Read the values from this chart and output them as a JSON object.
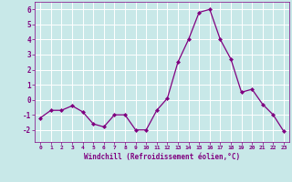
{
  "x": [
    0,
    1,
    2,
    3,
    4,
    5,
    6,
    7,
    8,
    9,
    10,
    11,
    12,
    13,
    14,
    15,
    16,
    17,
    18,
    19,
    20,
    21,
    22,
    23
  ],
  "y": [
    -1.2,
    -0.7,
    -0.7,
    -0.4,
    -0.8,
    -1.6,
    -1.8,
    -1.0,
    -1.0,
    -2.0,
    -2.0,
    -0.7,
    0.1,
    2.5,
    4.0,
    5.8,
    6.0,
    4.0,
    2.7,
    0.5,
    0.7,
    -0.3,
    -1.0,
    -2.1
  ],
  "line_color": "#800080",
  "marker": "D",
  "marker_size": 2,
  "bg_color": "#c8e8e8",
  "grid_color": "#b0d0d0",
  "xlabel": "Windchill (Refroidissement éolien,°C)",
  "xlabel_color": "#800080",
  "tick_color": "#800080",
  "label_color": "#800080",
  "ylim": [
    -2.8,
    6.5
  ],
  "yticks": [
    -2,
    -1,
    0,
    1,
    2,
    3,
    4,
    5,
    6
  ],
  "xlim": [
    -0.5,
    23.5
  ],
  "xticks": [
    0,
    1,
    2,
    3,
    4,
    5,
    6,
    7,
    8,
    9,
    10,
    11,
    12,
    13,
    14,
    15,
    16,
    17,
    18,
    19,
    20,
    21,
    22,
    23
  ]
}
